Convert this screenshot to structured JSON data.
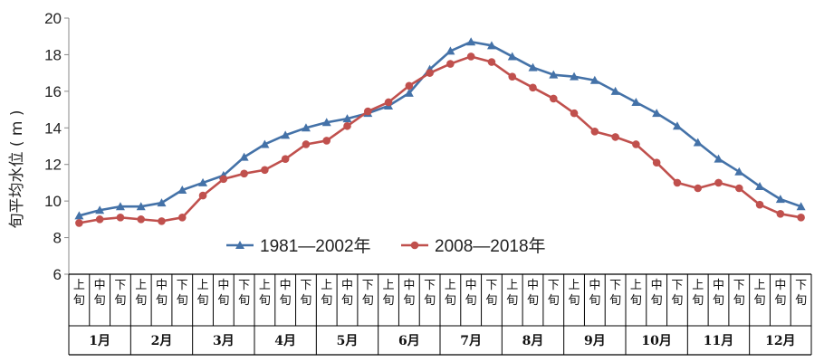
{
  "chart_data": {
    "type": "line",
    "title": "",
    "ylabel": "旬平均水位 ( m )",
    "xlabel": "",
    "ylim": [
      6,
      20
    ],
    "yticks": [
      6,
      8,
      10,
      12,
      14,
      16,
      18,
      20
    ],
    "grid": false,
    "legend_position": "lower-center",
    "dekads": [
      "上旬",
      "中旬",
      "下旬"
    ],
    "months": [
      "1月",
      "2月",
      "3月",
      "4月",
      "5月",
      "6月",
      "7月",
      "8月",
      "9月",
      "10月",
      "11月",
      "12月"
    ],
    "series": [
      {
        "name": "1981—2002年",
        "color": "#4472A8",
        "marker": "triangle",
        "values": [
          9.2,
          9.5,
          9.7,
          9.7,
          9.9,
          10.6,
          11.0,
          11.4,
          12.4,
          13.1,
          13.6,
          14.0,
          14.3,
          14.5,
          14.8,
          15.2,
          15.9,
          17.2,
          18.2,
          18.7,
          18.5,
          17.9,
          17.3,
          16.9,
          16.8,
          16.6,
          16.0,
          15.4,
          14.8,
          14.1,
          13.2,
          12.3,
          11.6,
          10.8,
          10.1,
          9.7
        ]
      },
      {
        "name": "2008—2018年",
        "color": "#C0504D",
        "marker": "circle",
        "values": [
          8.8,
          9.0,
          9.1,
          9.0,
          8.9,
          9.1,
          10.3,
          11.2,
          11.5,
          11.7,
          12.3,
          13.1,
          13.3,
          14.1,
          14.9,
          15.4,
          16.3,
          17.0,
          17.5,
          17.9,
          17.6,
          16.8,
          16.2,
          15.6,
          14.8,
          13.8,
          13.5,
          13.1,
          12.1,
          11.0,
          10.7,
          11.0,
          10.7,
          9.8,
          9.3,
          9.1
        ]
      }
    ]
  }
}
